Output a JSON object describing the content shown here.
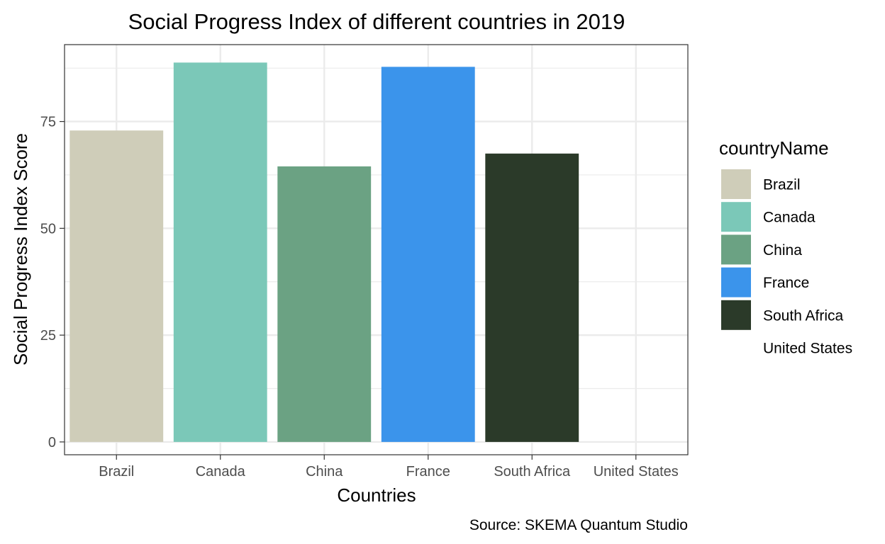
{
  "chart_data": {
    "type": "bar",
    "title": "Social Progress Index of different countries in 2019",
    "xlabel": "Countries",
    "ylabel": "Social Progress Index Score",
    "caption": "Source: SKEMA Quantum Studio",
    "legend_title": "countryName",
    "legend_position": "right",
    "grid": true,
    "ylim": [
      -3,
      93
    ],
    "yticks": [
      0,
      25,
      50,
      75
    ],
    "yminor": [
      12.5,
      37.5,
      62.5,
      87.5
    ],
    "categories": [
      "Brazil",
      "Canada",
      "China",
      "France",
      "South Africa",
      "United States"
    ],
    "values": [
      72.9,
      88.8,
      64.5,
      87.8,
      67.5,
      null
    ],
    "colors": [
      "#cfcdb9",
      "#7bc8b8",
      "#6ba283",
      "#3b94eb",
      "#2b3a29",
      "#ffffff"
    ]
  }
}
